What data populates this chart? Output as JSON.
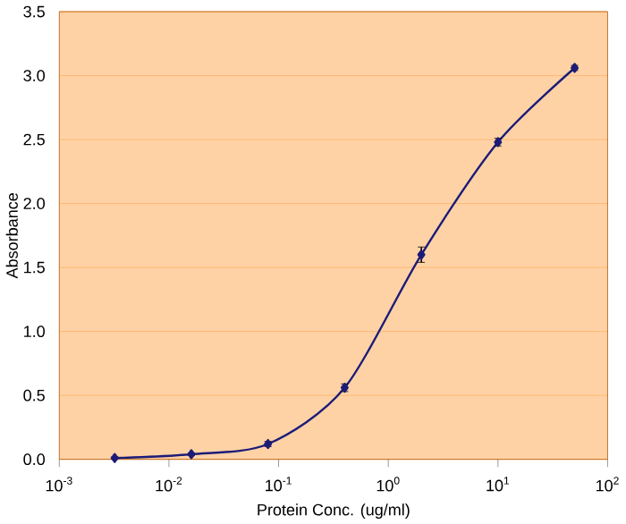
{
  "chart_data": {
    "type": "line",
    "xlabel": "Protein Conc. (ug/ml)",
    "ylabel": "Absorbance",
    "log": "x",
    "x": [
      0.0032,
      0.016,
      0.08,
      0.4,
      2,
      10,
      50
    ],
    "series": [
      {
        "color": "#1c1c78",
        "values": [
          0.01,
          0.04,
          0.12,
          0.56,
          1.6,
          2.48,
          3.06
        ],
        "errors": [
          0.01,
          0.01,
          0.02,
          0.03,
          0.06,
          0.03,
          0.02
        ]
      }
    ],
    "xlim": [
      0.001,
      100
    ],
    "xticks": [
      {
        "value": 0.001,
        "label": "10$^{-3}$"
      },
      {
        "value": 0.01,
        "label": "10$^{-2}$"
      },
      {
        "value": 0.1,
        "label": "10$^{-1}$"
      },
      {
        "value": 1,
        "label": "10$^{0}$"
      },
      {
        "value": 10,
        "label": "10$^{1}$"
      },
      {
        "value": 100,
        "label": "10$^{2}$"
      }
    ],
    "ylim": [
      0,
      3.5
    ],
    "yticks": [
      {
        "value": 0,
        "label": "0.0"
      },
      0.5,
      {
        "value": 1,
        "label": "1.0"
      },
      1.5,
      {
        "value": 2,
        "label": "2.0"
      },
      2.5,
      {
        "value": 3,
        "label": "3.0"
      },
      3.5
    ],
    "grid": "y",
    "marker": "diamond",
    "line_style": "solid"
  }
}
